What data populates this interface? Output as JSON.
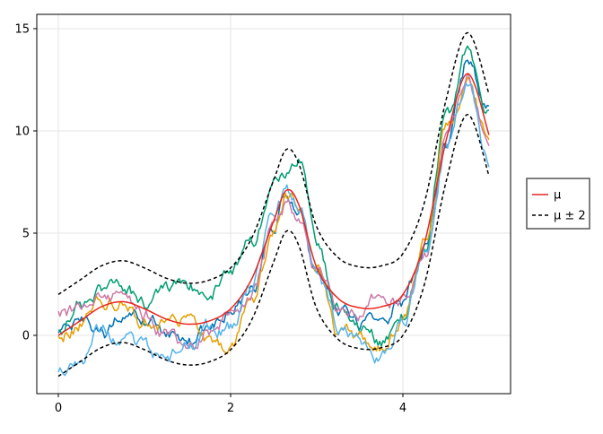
{
  "chart_data": {
    "type": "line",
    "title": "",
    "xlabel": "",
    "ylabel": "",
    "xlim": [
      -0.25,
      5.25
    ],
    "ylim": [
      -2.85,
      15.7
    ],
    "grid": true,
    "legend_position": "right",
    "x_ticks": [
      0,
      2,
      4
    ],
    "y_ticks": [
      0,
      5,
      10,
      15
    ],
    "x_tick_labels": [
      "0",
      "2",
      "4"
    ],
    "y_tick_labels": [
      "0",
      "5",
      "10",
      "15"
    ],
    "series": [
      {
        "name": "μ",
        "style": "solid",
        "color": "#e8261e",
        "x": [
          0,
          0.25,
          0.5,
          0.75,
          1.0,
          1.25,
          1.5,
          1.75,
          2.0,
          2.25,
          2.5,
          2.65,
          2.8,
          3.0,
          3.25,
          3.5,
          3.75,
          4.0,
          4.25,
          4.5,
          4.75,
          5.0
        ],
        "values": [
          0.0,
          0.7,
          1.4,
          1.65,
          1.3,
          0.8,
          0.55,
          0.7,
          1.3,
          2.8,
          5.6,
          7.1,
          6.3,
          3.3,
          1.8,
          1.35,
          1.4,
          2.0,
          4.5,
          9.5,
          12.8,
          9.8
        ]
      },
      {
        "name": "μ ± 2",
        "style": "dashed",
        "color": "#000000",
        "x": [
          0,
          0.25,
          0.5,
          0.75,
          1.0,
          1.25,
          1.5,
          1.75,
          2.0,
          2.25,
          2.5,
          2.65,
          2.8,
          3.0,
          3.25,
          3.5,
          3.75,
          4.0,
          4.25,
          4.5,
          4.75,
          5.0
        ],
        "values": [
          2.0,
          2.7,
          3.4,
          3.65,
          3.3,
          2.8,
          2.55,
          2.7,
          3.3,
          4.8,
          7.6,
          9.1,
          8.3,
          5.3,
          3.8,
          3.35,
          3.4,
          4.0,
          6.5,
          11.5,
          14.8,
          11.8
        ]
      },
      {
        "name": "",
        "style": "dashed",
        "color": "#000000",
        "x": [
          0,
          0.25,
          0.5,
          0.75,
          1.0,
          1.25,
          1.5,
          1.75,
          2.0,
          2.25,
          2.5,
          2.65,
          2.8,
          3.0,
          3.25,
          3.5,
          3.75,
          4.0,
          4.25,
          4.5,
          4.75,
          5.0
        ],
        "values": [
          -2.0,
          -1.3,
          -0.6,
          -0.35,
          -0.7,
          -1.2,
          -1.45,
          -1.3,
          -0.7,
          0.8,
          3.6,
          5.1,
          4.3,
          1.3,
          -0.2,
          -0.65,
          -0.6,
          0.0,
          2.5,
          7.5,
          10.8,
          7.8
        ]
      },
      {
        "name": "",
        "style": "solid",
        "color": "#0072b2",
        "x": [
          0,
          0.25,
          0.5,
          0.75,
          1.0,
          1.25,
          1.5,
          1.75,
          2.0,
          2.25,
          2.5,
          2.65,
          2.8,
          3.0,
          3.25,
          3.5,
          3.75,
          4.0,
          4.25,
          4.5,
          4.75,
          5.0
        ],
        "values": [
          0.2,
          0.6,
          -0.1,
          0.8,
          0.6,
          0.3,
          -0.4,
          0.4,
          1.0,
          2.2,
          5.2,
          6.8,
          6.1,
          2.8,
          1.2,
          0.5,
          0.9,
          1.7,
          4.2,
          9.3,
          13.4,
          11.0
        ]
      },
      {
        "name": "",
        "style": "solid",
        "color": "#009e73",
        "x": [
          0,
          0.25,
          0.5,
          0.75,
          1.0,
          1.25,
          1.5,
          1.75,
          2.0,
          2.25,
          2.5,
          2.65,
          2.8,
          3.0,
          3.25,
          3.5,
          3.75,
          4.0,
          4.25,
          4.5,
          4.75,
          5.0
        ],
        "values": [
          0.3,
          1.4,
          2.2,
          2.5,
          1.6,
          2.0,
          2.4,
          2.1,
          3.3,
          4.6,
          7.3,
          8.0,
          8.5,
          4.2,
          1.3,
          0.2,
          -0.3,
          0.9,
          4.4,
          10.3,
          14.1,
          11.2
        ]
      },
      {
        "name": "",
        "style": "solid",
        "color": "#e69f00",
        "x": [
          0,
          0.25,
          0.5,
          0.75,
          1.0,
          1.25,
          1.5,
          1.75,
          2.0,
          2.25,
          2.5,
          2.65,
          2.8,
          3.0,
          3.25,
          3.5,
          3.75,
          4.0,
          4.25,
          4.5,
          4.75,
          5.0
        ],
        "values": [
          0.0,
          0.5,
          1.7,
          1.6,
          0.7,
          0.5,
          0.7,
          -0.4,
          -0.6,
          1.8,
          5.1,
          6.6,
          6.2,
          3.4,
          0.2,
          -0.2,
          -0.5,
          0.5,
          4.3,
          10.1,
          12.6,
          9.6
        ]
      },
      {
        "name": "",
        "style": "solid",
        "color": "#cc79a7",
        "x": [
          0,
          0.25,
          0.5,
          0.75,
          1.0,
          1.25,
          1.5,
          1.75,
          2.0,
          2.25,
          2.5,
          2.65,
          2.8,
          3.0,
          3.25,
          3.5,
          3.75,
          4.0,
          4.25,
          4.5,
          4.75,
          5.0
        ],
        "values": [
          1.2,
          1.1,
          1.9,
          1.8,
          1.0,
          0.0,
          -0.9,
          0.3,
          1.2,
          2.0,
          5.3,
          6.4,
          5.8,
          3.1,
          1.4,
          1.2,
          2.0,
          1.6,
          3.9,
          9.6,
          12.5,
          9.4
        ]
      },
      {
        "name": "",
        "style": "solid",
        "color": "#56b4e9",
        "x": [
          0,
          0.25,
          0.5,
          0.75,
          1.0,
          1.25,
          1.5,
          1.75,
          2.0,
          2.25,
          2.5,
          2.65,
          2.8,
          3.0,
          3.25,
          3.5,
          3.75,
          4.0,
          4.25,
          4.5,
          4.75,
          5.0
        ],
        "values": [
          -1.8,
          -1.4,
          0.4,
          -0.3,
          -0.5,
          -1.2,
          -0.5,
          0.3,
          0.4,
          2.4,
          5.9,
          7.0,
          6.4,
          3.1,
          0.6,
          -0.3,
          -1.1,
          0.4,
          3.9,
          9.0,
          12.4,
          8.5
        ]
      }
    ]
  }
}
